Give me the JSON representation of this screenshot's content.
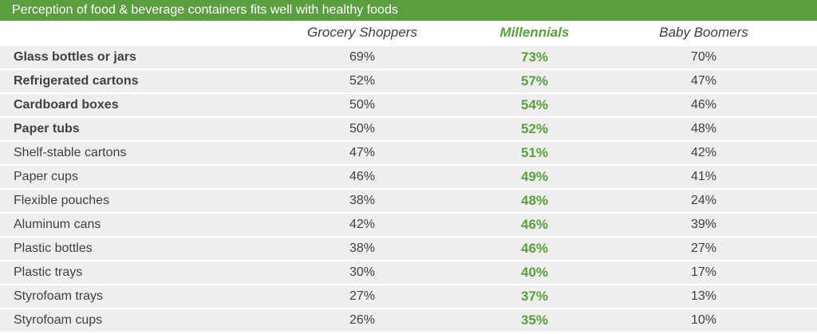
{
  "chart_data": {
    "type": "table",
    "title": "Perception of food & beverage containers fits well with healthy foods",
    "columns": [
      "Grocery Shoppers",
      "Millennials",
      "Baby Boomers"
    ],
    "rows": [
      {
        "label": "Glass bottles or jars",
        "values": [
          "69%",
          "73%",
          "70%"
        ],
        "bold": true
      },
      {
        "label": "Refrigerated cartons",
        "values": [
          "52%",
          "57%",
          "47%"
        ],
        "bold": true
      },
      {
        "label": "Cardboard boxes",
        "values": [
          "50%",
          "54%",
          "46%"
        ],
        "bold": true
      },
      {
        "label": "Paper tubs",
        "values": [
          "50%",
          "52%",
          "48%"
        ],
        "bold": true
      },
      {
        "label": "Shelf-stable cartons",
        "values": [
          "47%",
          "51%",
          "42%"
        ],
        "bold": false
      },
      {
        "label": "Paper cups",
        "values": [
          "46%",
          "49%",
          "41%"
        ],
        "bold": false
      },
      {
        "label": "Flexible pouches",
        "values": [
          "38%",
          "48%",
          "24%"
        ],
        "bold": false
      },
      {
        "label": "Aluminum cans",
        "values": [
          "42%",
          "46%",
          "39%"
        ],
        "bold": false
      },
      {
        "label": "Plastic bottles",
        "values": [
          "38%",
          "46%",
          "27%"
        ],
        "bold": false
      },
      {
        "label": "Plastic trays",
        "values": [
          "30%",
          "40%",
          "17%"
        ],
        "bold": false
      },
      {
        "label": "Styrofoam trays",
        "values": [
          "27%",
          "37%",
          "13%"
        ],
        "bold": false
      },
      {
        "label": "Styrofoam cups",
        "values": [
          "26%",
          "35%",
          "10%"
        ],
        "bold": false
      }
    ],
    "highlight_column": "Millennials",
    "colors": {
      "accent": "#5b9e3f",
      "row_background": "#eeeeee",
      "text": "#404040"
    }
  }
}
